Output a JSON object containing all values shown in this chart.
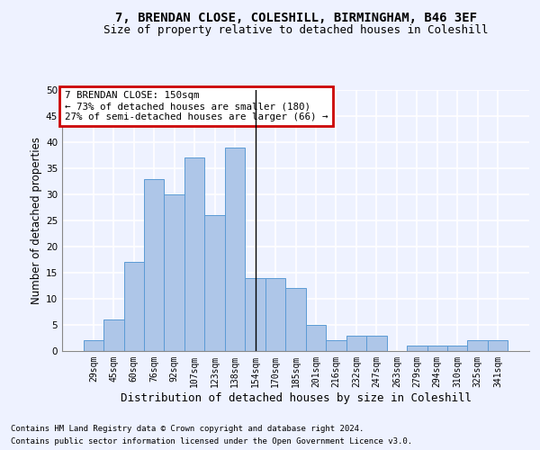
{
  "title_line1": "7, BRENDAN CLOSE, COLESHILL, BIRMINGHAM, B46 3EF",
  "title_line2": "Size of property relative to detached houses in Coleshill",
  "xlabel": "Distribution of detached houses by size in Coleshill",
  "ylabel": "Number of detached properties",
  "footer_line1": "Contains HM Land Registry data © Crown copyright and database right 2024.",
  "footer_line2": "Contains public sector information licensed under the Open Government Licence v3.0.",
  "annotation_line1": "7 BRENDAN CLOSE: 150sqm",
  "annotation_line2": "← 73% of detached houses are smaller (180)",
  "annotation_line3": "27% of semi-detached houses are larger (66) →",
  "bin_labels": [
    "29sqm",
    "45sqm",
    "60sqm",
    "76sqm",
    "92sqm",
    "107sqm",
    "123sqm",
    "138sqm",
    "154sqm",
    "170sqm",
    "185sqm",
    "201sqm",
    "216sqm",
    "232sqm",
    "247sqm",
    "263sqm",
    "279sqm",
    "294sqm",
    "310sqm",
    "325sqm",
    "341sqm"
  ],
  "bar_heights": [
    2,
    6,
    17,
    33,
    30,
    37,
    26,
    39,
    14,
    14,
    12,
    5,
    2,
    3,
    3,
    0,
    1,
    1,
    1,
    2,
    2
  ],
  "bar_color": "#aec6e8",
  "bar_edge_color": "#5b9bd5",
  "vline_x": 8,
  "vline_color": "#000000",
  "ylim": [
    0,
    50
  ],
  "yticks": [
    0,
    5,
    10,
    15,
    20,
    25,
    30,
    35,
    40,
    45,
    50
  ],
  "bg_color": "#eef2ff",
  "plot_bg_color": "#eef2ff",
  "grid_color": "#ffffff",
  "annotation_box_color": "#cc0000",
  "title1_fontsize": 10,
  "title2_fontsize": 9,
  "xlabel_fontsize": 9,
  "ylabel_fontsize": 8.5,
  "tick_fontsize": 7,
  "footer_fontsize": 6.5
}
